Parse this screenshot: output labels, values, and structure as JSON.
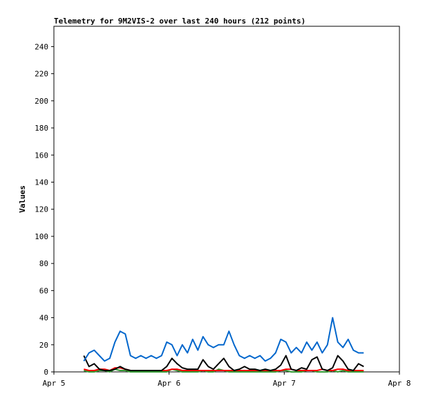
{
  "chart_data": {
    "type": "line",
    "title": "Telemetry for 9M2VIS-2 over last 240 hours (212 points)",
    "y_label": "Values",
    "xlim": [
      0,
      3
    ],
    "xticks": [
      {
        "value": 0,
        "label": "Apr 5"
      },
      {
        "value": 1,
        "label": "Apr 6"
      },
      {
        "value": 2,
        "label": "Apr 7"
      },
      {
        "value": 3,
        "label": "Apr 8"
      }
    ],
    "ylim": [
      0,
      255
    ],
    "yticks": [
      0,
      20,
      40,
      60,
      80,
      100,
      120,
      140,
      160,
      180,
      200,
      220,
      240
    ],
    "x": [
      0.26,
      0.305,
      0.35,
      0.395,
      0.44,
      0.485,
      0.53,
      0.575,
      0.62,
      0.665,
      0.71,
      0.755,
      0.8,
      0.845,
      0.89,
      0.935,
      0.98,
      1.025,
      1.07,
      1.115,
      1.16,
      1.205,
      1.25,
      1.295,
      1.34,
      1.385,
      1.43,
      1.475,
      1.52,
      1.565,
      1.61,
      1.655,
      1.7,
      1.745,
      1.79,
      1.835,
      1.88,
      1.925,
      1.97,
      2.015,
      2.06,
      2.105,
      2.15,
      2.195,
      2.24,
      2.285,
      2.33,
      2.375,
      2.42,
      2.465,
      2.51,
      2.555,
      2.6,
      2.645,
      2.69
    ],
    "series": [
      {
        "color": "#0066cc",
        "values": [
          8,
          14,
          16,
          12,
          8,
          10,
          22,
          30,
          28,
          12,
          10,
          12,
          10,
          12,
          10,
          12,
          22,
          20,
          12,
          20,
          14,
          24,
          16,
          26,
          20,
          18,
          20,
          20,
          30,
          20,
          12,
          10,
          12,
          10,
          12,
          8,
          10,
          14,
          24,
          22,
          14,
          18,
          14,
          22,
          16,
          22,
          14,
          20,
          40,
          22,
          18,
          24,
          16,
          14,
          14
        ]
      },
      {
        "color": "#000000",
        "values": [
          12,
          4,
          6,
          2,
          1,
          1,
          2,
          4,
          2,
          1,
          1,
          1,
          1,
          1,
          1,
          1,
          4,
          10,
          6,
          3,
          2,
          2,
          2,
          9,
          4,
          2,
          6,
          10,
          4,
          1,
          2,
          4,
          2,
          2,
          1,
          2,
          1,
          2,
          5,
          12,
          2,
          1,
          3,
          2,
          9,
          11,
          2,
          1,
          3,
          12,
          8,
          2,
          1,
          6,
          4
        ]
      },
      {
        "color": "#ff0000",
        "values": [
          2,
          1,
          1,
          2,
          2,
          1,
          3,
          3,
          2,
          1,
          1,
          1,
          1,
          1,
          1,
          1,
          1,
          2,
          2,
          1,
          1,
          1,
          1,
          1,
          1,
          1,
          1,
          1,
          1,
          1,
          1,
          1,
          1,
          1,
          1,
          1,
          1,
          1,
          1,
          2,
          2,
          1,
          1,
          1,
          1,
          1,
          2,
          1,
          1,
          2,
          2,
          1,
          1,
          1,
          1
        ]
      },
      {
        "color": "#339933",
        "values": [
          1,
          0,
          0,
          1,
          1,
          0,
          2,
          1,
          1,
          0,
          0,
          0,
          0,
          0,
          0,
          0,
          0,
          2,
          1,
          0,
          0,
          0,
          0,
          1,
          0,
          0,
          2,
          1,
          0,
          0,
          0,
          0,
          0,
          0,
          0,
          0,
          0,
          0,
          1,
          1,
          0,
          0,
          0,
          1,
          1,
          0,
          0,
          0,
          1,
          0,
          1,
          0,
          0,
          0,
          0
        ]
      }
    ]
  }
}
